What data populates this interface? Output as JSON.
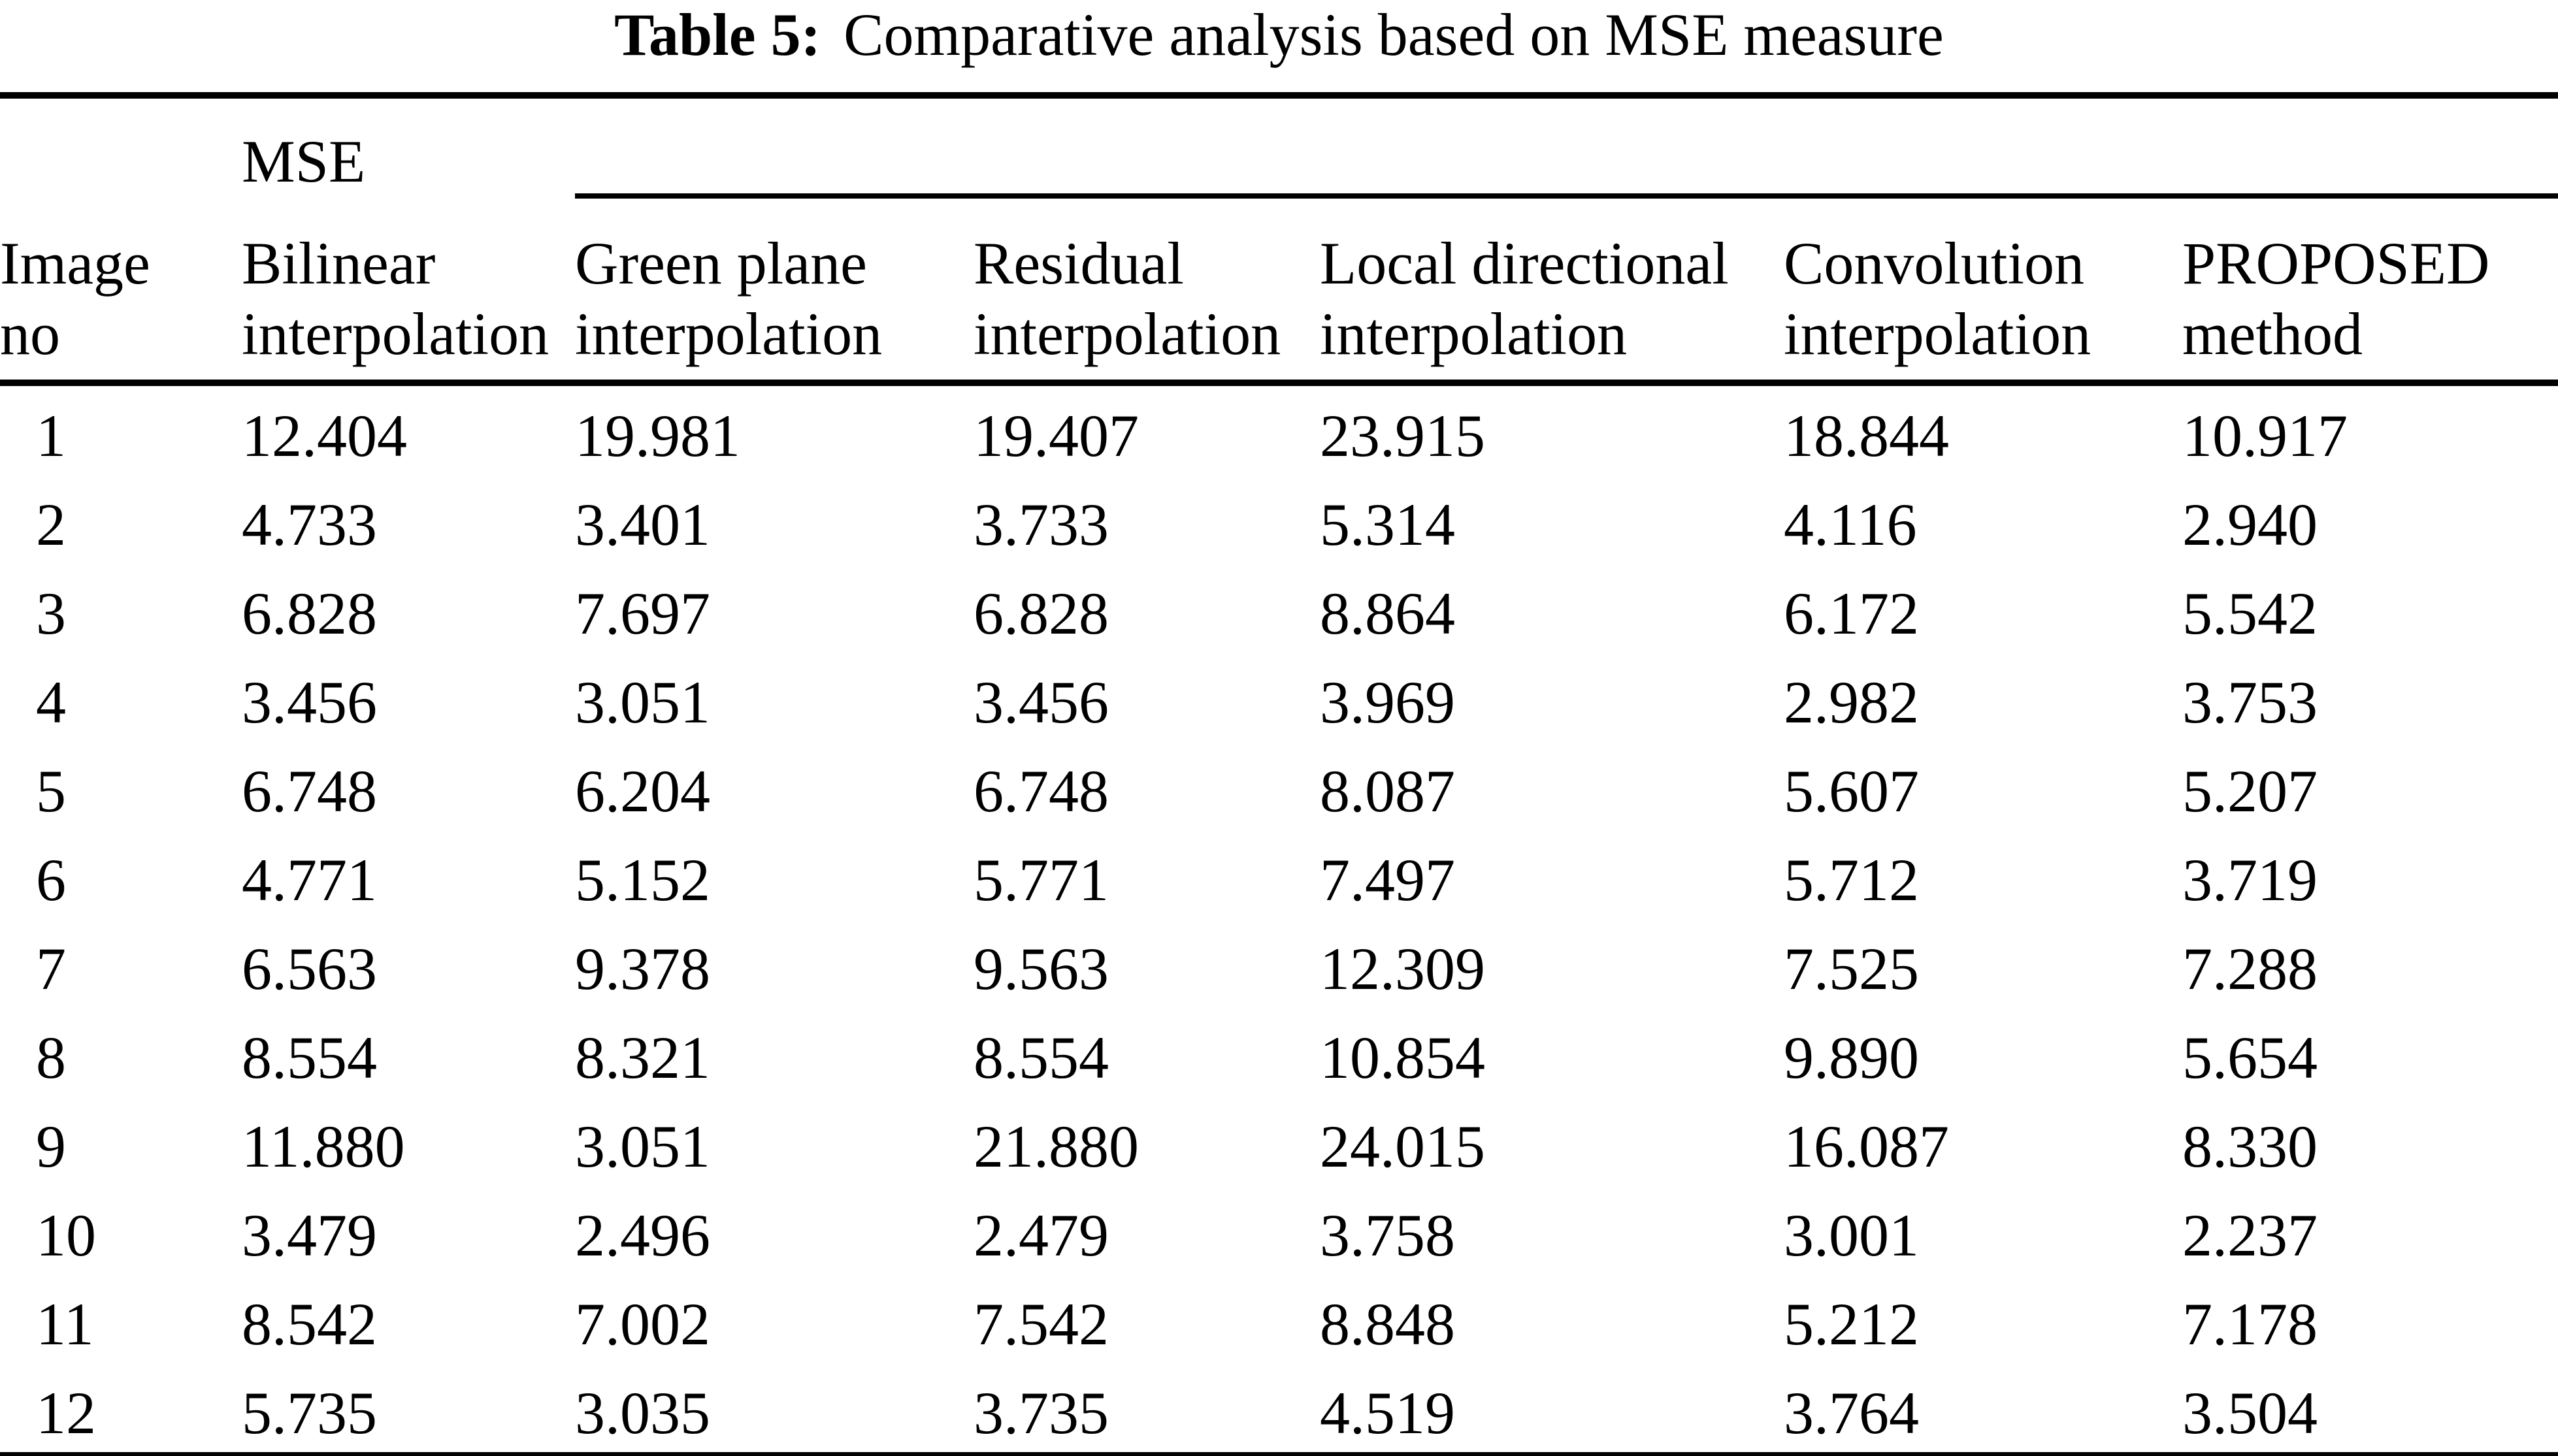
{
  "caption": {
    "label": "Table 5:",
    "text": "Comparative analysis based on MSE measure"
  },
  "table": {
    "group_header": "MSE",
    "columns": [
      {
        "line1": "Image",
        "line2": "no"
      },
      {
        "line1": "Bilinear",
        "line2": "interpolation"
      },
      {
        "line1": "Green plane",
        "line2": "interpolation"
      },
      {
        "line1": "Residual",
        "line2": "interpolation"
      },
      {
        "line1": "Local directional",
        "line2": "interpolation"
      },
      {
        "line1": "Convolution",
        "line2": "interpolation"
      },
      {
        "line1": "PROPOSED",
        "line2": "method"
      }
    ],
    "rows": [
      [
        "1",
        "12.404",
        "19.981",
        "19.407",
        "23.915",
        "18.844",
        "10.917"
      ],
      [
        "2",
        "4.733",
        "3.401",
        "3.733",
        "5.314",
        "4.116",
        "2.940"
      ],
      [
        "3",
        "6.828",
        "7.697",
        "6.828",
        "8.864",
        "6.172",
        "5.542"
      ],
      [
        "4",
        "3.456",
        "3.051",
        "3.456",
        "3.969",
        "2.982",
        "3.753"
      ],
      [
        "5",
        "6.748",
        "6.204",
        "6.748",
        "8.087",
        "5.607",
        "5.207"
      ],
      [
        "6",
        "4.771",
        "5.152",
        "5.771",
        "7.497",
        "5.712",
        "3.719"
      ],
      [
        "7",
        "6.563",
        "9.378",
        "9.563",
        "12.309",
        "7.525",
        "7.288"
      ],
      [
        "8",
        "8.554",
        "8.321",
        "8.554",
        "10.854",
        "9.890",
        "5.654"
      ],
      [
        "9",
        "11.880",
        "3.051",
        "21.880",
        "24.015",
        "16.087",
        "8.330"
      ],
      [
        "10",
        "3.479",
        "2.496",
        "2.479",
        "3.758",
        "3.001",
        "2.237"
      ],
      [
        "11",
        "8.542",
        "7.002",
        "7.542",
        "8.848",
        "5.212",
        "7.178"
      ],
      [
        "12",
        "5.735",
        "3.035",
        "3.735",
        "4.519",
        "3.764",
        "3.504"
      ]
    ]
  }
}
